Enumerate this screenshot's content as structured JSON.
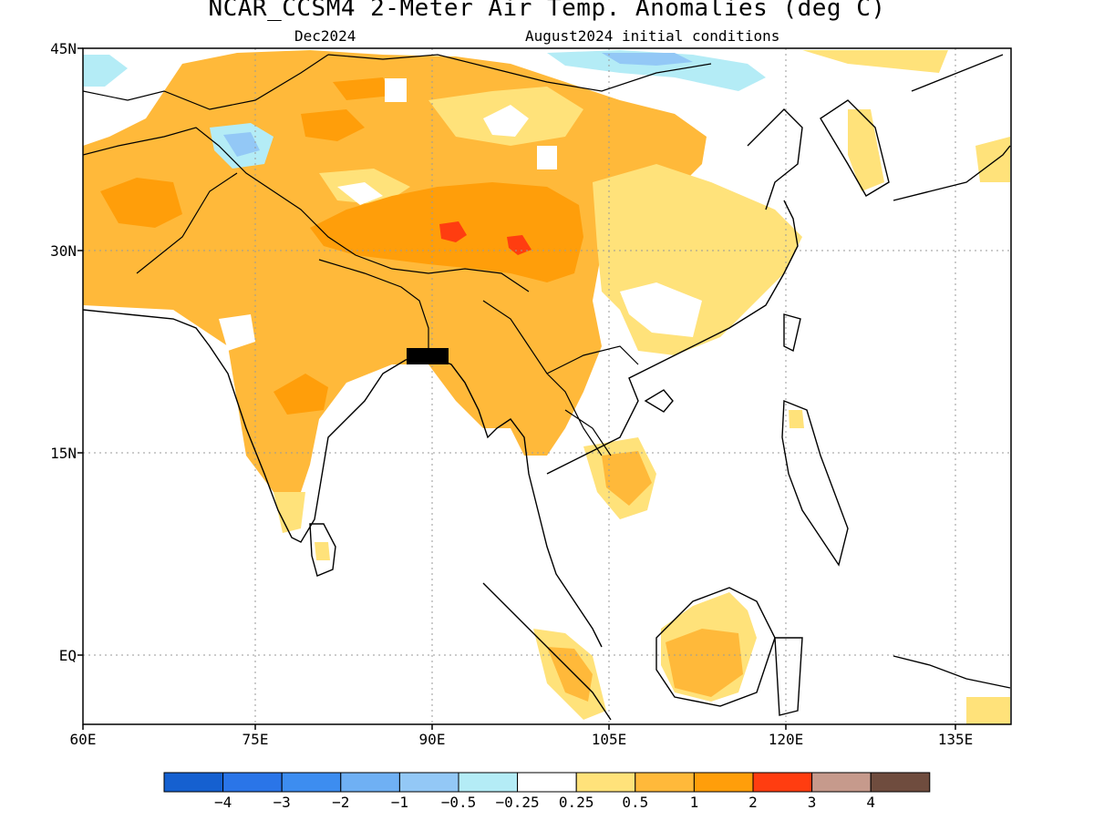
{
  "title": "NCAR_CCSM4 2-Meter Air Temp. Anomalies (deg C)",
  "valid_month": "Dec2024",
  "init_conditions": "August2024 initial conditions",
  "lat_labels": [
    "45N",
    "30N",
    "15N",
    "EQ"
  ],
  "lon_labels": [
    "60E",
    "75E",
    "90E",
    "105E",
    "120E",
    "135E"
  ],
  "colorbar": {
    "colors": [
      "#1560d0",
      "#2a75e8",
      "#3d8df0",
      "#6fb0f4",
      "#93c8f6",
      "#b4ecf6",
      "#ffffff",
      "#ffe27a",
      "#ffb93a",
      "#ff9e0a",
      "#ff3d10",
      "#c69a8c",
      "#6f4c3e"
    ],
    "labels": [
      "−4",
      "−3",
      "−2",
      "−1",
      "−0.5",
      "−0.25",
      "0.25",
      "0.5",
      "1",
      "2",
      "3",
      "4"
    ]
  }
}
